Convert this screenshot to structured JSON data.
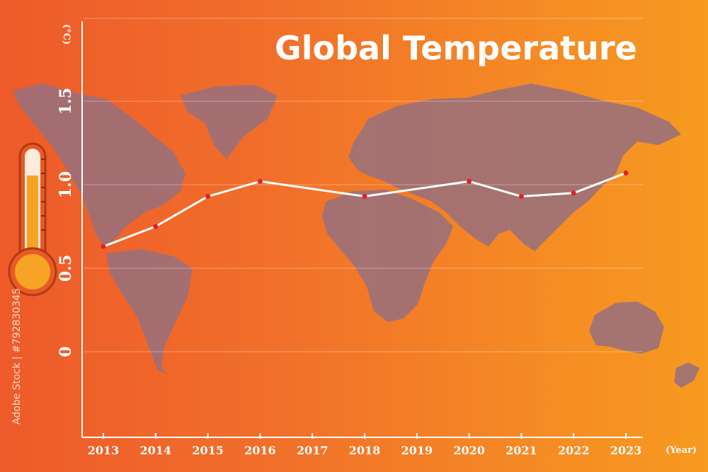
{
  "chart_data": {
    "type": "line",
    "title": "Global Temperature",
    "ylabel": "(°C)",
    "xlabel": "(Year)",
    "categories": [
      "2013",
      "2014",
      "2015",
      "2016",
      "2017",
      "2018",
      "2019",
      "2020",
      "2021",
      "2022",
      "2023"
    ],
    "series": [
      {
        "values": [
          0.63,
          0.75,
          0.93,
          1.02,
          null,
          0.93,
          null,
          1.02,
          0.93,
          0.95,
          1.07
        ]
      }
    ],
    "y_ticks": [
      "0",
      "0.5",
      "1.0",
      "1.5"
    ],
    "ylim": [
      -0.5,
      2.0
    ],
    "grid": true,
    "line_color": "#ffffff",
    "marker_color": "#e0202a"
  },
  "side_caption": "Adobe Stock | #792830345"
}
